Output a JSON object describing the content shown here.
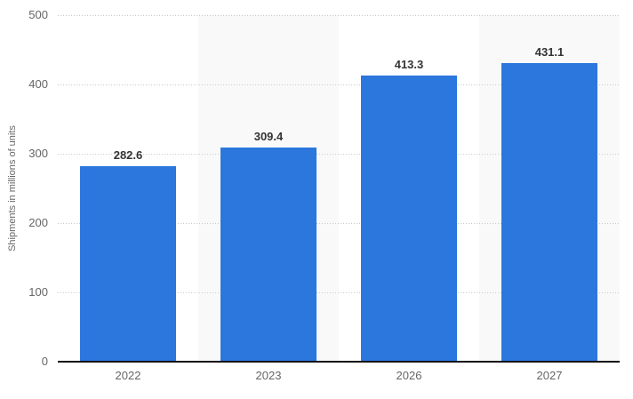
{
  "chart_data": {
    "type": "bar",
    "title": "",
    "xlabel": "",
    "ylabel": "Shipments in millions of units",
    "categories": [
      "2022",
      "2023",
      "2026",
      "2027"
    ],
    "values": [
      282.6,
      309.4,
      413.3,
      431.1
    ],
    "ylim": [
      0,
      500
    ],
    "yticks": [
      0,
      100,
      200,
      300,
      400,
      500
    ],
    "grid": "horizontal-dotted",
    "legend": "none",
    "plot_bands_on_categories": [
      1,
      3
    ],
    "colors": {
      "bar": "#2b77dd",
      "plot_band": "#f9f9f9",
      "gridline": "#c9c9c9",
      "axis_line": "#111111",
      "tick_label": "#666666",
      "data_label": "#333333",
      "background": "#ffffff"
    }
  }
}
